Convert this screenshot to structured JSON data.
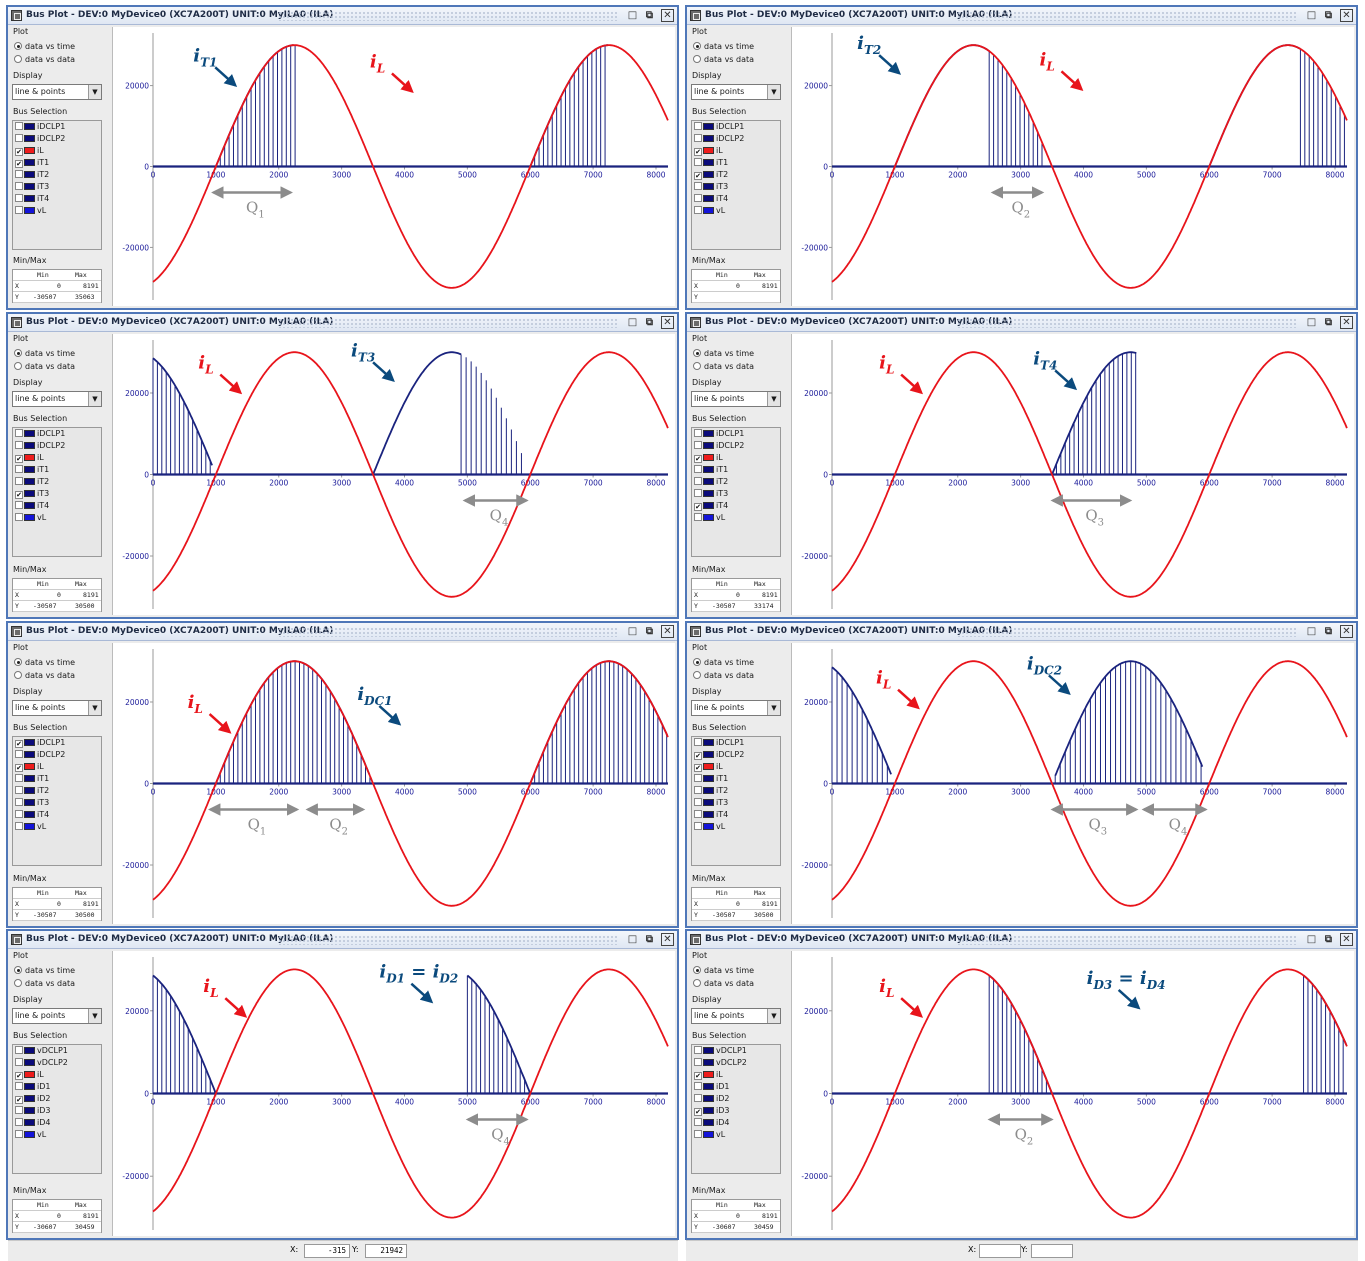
{
  "window_title": "Bus Plot - DEV:0 MyDevice0 (XC7A200T) UNIT:0 MyILA0 (ILA)",
  "sidebar": {
    "plot_label": "Plot",
    "radio_time": "data vs time",
    "radio_data": "data vs data",
    "display_label": "Display",
    "display_value": "line & points",
    "bus_label": "Bus Selection",
    "minmax_label": "Min/Max",
    "col_min": "Min",
    "col_max": "Max",
    "row_x": "X",
    "row_y": "Y"
  },
  "colors": {
    "current_il": "#e8141b",
    "bus_trace": "#1a237e",
    "annot_blue": "#0b4a7d",
    "annot_red": "#e8141b",
    "arrow_gray": "#8c8c8c",
    "swatch_navy": "#0a0a7a",
    "swatch_blue": "#1414d8",
    "swatch_red": "#ee1c1c"
  },
  "panels": [
    {
      "id": "p1",
      "buses": [
        {
          "name": "iDCLP1",
          "checked": false,
          "color": "#0a0a7a"
        },
        {
          "name": "iDCLP2",
          "checked": false,
          "color": "#0a0a7a"
        },
        {
          "name": "iL",
          "checked": true,
          "color": "#ee1c1c"
        },
        {
          "name": "iT1",
          "checked": true,
          "color": "#0a0a7a"
        },
        {
          "name": "iT2",
          "checked": false,
          "color": "#0a0a7a"
        },
        {
          "name": "iT3",
          "checked": false,
          "color": "#0a0a7a"
        },
        {
          "name": "iT4",
          "checked": false,
          "color": "#0a0a7a"
        },
        {
          "name": "vL",
          "checked": false,
          "color": "#1414d8"
        }
      ],
      "minmax": {
        "x_min": "0",
        "x_max": "8191",
        "y_min": "-30507",
        "y_max": "35063"
      },
      "trace": {
        "type": "switch",
        "start": 1000,
        "end": 2250,
        "height": 30000,
        "segment": "rise"
      },
      "annotations": [
        {
          "text": "i",
          "sub": "T1",
          "color": "blue",
          "label_x": 640,
          "label_y": 26000
        },
        {
          "text": "i",
          "sub": "L",
          "color": "red",
          "label_x": 3450,
          "label_y": 24500
        }
      ],
      "q_arrows": [
        {
          "from": 900,
          "to": 2250,
          "label": "Q",
          "sub": "1"
        }
      ]
    },
    {
      "id": "p2",
      "buses": [
        {
          "name": "iDCLP1",
          "checked": false,
          "color": "#0a0a7a"
        },
        {
          "name": "iDCLP2",
          "checked": false,
          "color": "#0a0a7a"
        },
        {
          "name": "iL",
          "checked": true,
          "color": "#ee1c1c"
        },
        {
          "name": "iT1",
          "checked": false,
          "color": "#0a0a7a"
        },
        {
          "name": "iT2",
          "checked": true,
          "color": "#0a0a7a"
        },
        {
          "name": "iT3",
          "checked": false,
          "color": "#0a0a7a"
        },
        {
          "name": "iT4",
          "checked": false,
          "color": "#0a0a7a"
        },
        {
          "name": "vL",
          "checked": false,
          "color": "#1414d8"
        }
      ],
      "minmax": {
        "x_min": "0",
        "x_max": "8191",
        "y_min": "",
        "y_max": ""
      },
      "trace": {
        "type": "switch2",
        "start": 1000,
        "end": 3400,
        "height": 30000,
        "segment": "rise-fall"
      },
      "annotations": [
        {
          "text": "i",
          "sub": "T2",
          "color": "blue",
          "label_x": 400,
          "label_y": 29000
        },
        {
          "text": "i",
          "sub": "L",
          "color": "red",
          "label_x": 3300,
          "label_y": 25000
        }
      ],
      "q_arrows": [
        {
          "from": 2500,
          "to": 3400,
          "label": "Q",
          "sub": "2"
        }
      ]
    },
    {
      "id": "p3",
      "buses": [
        {
          "name": "iDCLP1",
          "checked": false,
          "color": "#0a0a7a"
        },
        {
          "name": "iDCLP2",
          "checked": false,
          "color": "#0a0a7a"
        },
        {
          "name": "iL",
          "checked": true,
          "color": "#ee1c1c"
        },
        {
          "name": "iT1",
          "checked": false,
          "color": "#0a0a7a"
        },
        {
          "name": "iT2",
          "checked": false,
          "color": "#0a0a7a"
        },
        {
          "name": "iT3",
          "checked": true,
          "color": "#0a0a7a"
        },
        {
          "name": "iT4",
          "checked": false,
          "color": "#0a0a7a"
        },
        {
          "name": "vL",
          "checked": false,
          "color": "#1414d8"
        }
      ],
      "minmax": {
        "x_min": "0",
        "x_max": "8191",
        "y_min": "-30507",
        "y_max": "30500"
      },
      "trace": {
        "type": "t3"
      },
      "annotations": [
        {
          "text": "i",
          "sub": "L",
          "color": "red",
          "label_x": 720,
          "label_y": 26000
        },
        {
          "text": "i",
          "sub": "T3",
          "color": "blue",
          "label_x": 3150,
          "label_y": 29000
        }
      ],
      "q_arrows": [
        {
          "from": 4900,
          "to": 6000,
          "label": "Q",
          "sub": "4"
        }
      ]
    },
    {
      "id": "p4",
      "buses": [
        {
          "name": "iDCLP1",
          "checked": false,
          "color": "#0a0a7a"
        },
        {
          "name": "iDCLP2",
          "checked": false,
          "color": "#0a0a7a"
        },
        {
          "name": "iL",
          "checked": true,
          "color": "#ee1c1c"
        },
        {
          "name": "iT1",
          "checked": false,
          "color": "#0a0a7a"
        },
        {
          "name": "iT2",
          "checked": false,
          "color": "#0a0a7a"
        },
        {
          "name": "iT3",
          "checked": false,
          "color": "#0a0a7a"
        },
        {
          "name": "iT4",
          "checked": true,
          "color": "#0a0a7a"
        },
        {
          "name": "vL",
          "checked": false,
          "color": "#1414d8"
        }
      ],
      "minmax": {
        "x_min": "0",
        "x_max": "8191",
        "y_min": "-30507",
        "y_max": "33174"
      },
      "trace": {
        "type": "t4"
      },
      "annotations": [
        {
          "text": "i",
          "sub": "L",
          "color": "red",
          "label_x": 750,
          "label_y": 26000
        },
        {
          "text": "i",
          "sub": "T4",
          "color": "blue",
          "label_x": 3200,
          "label_y": 27000
        }
      ],
      "q_arrows": [
        {
          "from": 3450,
          "to": 4800,
          "label": "Q",
          "sub": "3"
        }
      ]
    },
    {
      "id": "p5",
      "buses": [
        {
          "name": "iDCLP1",
          "checked": true,
          "color": "#0a0a7a"
        },
        {
          "name": "iDCLP2",
          "checked": false,
          "color": "#0a0a7a"
        },
        {
          "name": "iL",
          "checked": true,
          "color": "#ee1c1c"
        },
        {
          "name": "iT1",
          "checked": false,
          "color": "#0a0a7a"
        },
        {
          "name": "iT2",
          "checked": false,
          "color": "#0a0a7a"
        },
        {
          "name": "iT3",
          "checked": false,
          "color": "#0a0a7a"
        },
        {
          "name": "iT4",
          "checked": false,
          "color": "#0a0a7a"
        },
        {
          "name": "vL",
          "checked": false,
          "color": "#1414d8"
        }
      ],
      "minmax": {
        "x_min": "0",
        "x_max": "8191",
        "y_min": "-30507",
        "y_max": "30500"
      },
      "trace": {
        "type": "dc1"
      },
      "annotations": [
        {
          "text": "i",
          "sub": "L",
          "color": "red",
          "label_x": 550,
          "label_y": 18500
        },
        {
          "text": "i",
          "sub": "DC1",
          "color": "blue",
          "label_x": 3250,
          "label_y": 20500
        }
      ],
      "q_arrows": [
        {
          "from": 850,
          "to": 2350,
          "label": "Q",
          "sub": "1"
        },
        {
          "from": 2400,
          "to": 3400,
          "label": "Q",
          "sub": "2"
        }
      ]
    },
    {
      "id": "p6",
      "buses": [
        {
          "name": "iDCLP1",
          "checked": false,
          "color": "#0a0a7a"
        },
        {
          "name": "iDCLP2",
          "checked": true,
          "color": "#0a0a7a"
        },
        {
          "name": "iL",
          "checked": true,
          "color": "#ee1c1c"
        },
        {
          "name": "iT1",
          "checked": false,
          "color": "#0a0a7a"
        },
        {
          "name": "iT2",
          "checked": false,
          "color": "#0a0a7a"
        },
        {
          "name": "iT3",
          "checked": false,
          "color": "#0a0a7a"
        },
        {
          "name": "iT4",
          "checked": false,
          "color": "#0a0a7a"
        },
        {
          "name": "vL",
          "checked": false,
          "color": "#1414d8"
        }
      ],
      "minmax": {
        "x_min": "0",
        "x_max": "8191",
        "y_min": "-30507",
        "y_max": "30500"
      },
      "trace": {
        "type": "dc2"
      },
      "annotations": [
        {
          "text": "i",
          "sub": "L",
          "color": "red",
          "label_x": 700,
          "label_y": 24500
        },
        {
          "text": "i",
          "sub": "DC2",
          "color": "blue",
          "label_x": 3100,
          "label_y": 28000
        }
      ],
      "q_arrows": [
        {
          "from": 3450,
          "to": 4900,
          "label": "Q",
          "sub": "3"
        },
        {
          "from": 4900,
          "to": 6000,
          "label": "Q",
          "sub": "4"
        }
      ]
    },
    {
      "id": "p7",
      "buses": [
        {
          "name": "vDCLP1",
          "checked": false,
          "color": "#0a0a7a"
        },
        {
          "name": "vDCLP2",
          "checked": false,
          "color": "#0a0a7a"
        },
        {
          "name": "iL",
          "checked": true,
          "color": "#ee1c1c"
        },
        {
          "name": "iD1",
          "checked": false,
          "color": "#0a0a7a"
        },
        {
          "name": "iD2",
          "checked": true,
          "color": "#0a0a7a"
        },
        {
          "name": "iD3",
          "checked": false,
          "color": "#0a0a7a"
        },
        {
          "name": "iD4",
          "checked": false,
          "color": "#0a0a7a"
        },
        {
          "name": "vL",
          "checked": false,
          "color": "#1414d8"
        }
      ],
      "minmax": {
        "x_min": "0",
        "x_max": "8191",
        "y_min": "-30607",
        "y_max": "30459"
      },
      "trace": {
        "type": "d12"
      },
      "annotations": [
        {
          "text": "i",
          "sub": "L",
          "color": "red",
          "label_x": 800,
          "label_y": 24500
        },
        {
          "text": "i",
          "sub": "D1",
          "color": "blue",
          "label_x": 3600,
          "label_y": 28000,
          "extra": " = ",
          "text2": "i",
          "sub2": "D2"
        }
      ],
      "q_arrows": [
        {
          "from": 4950,
          "to": 6000,
          "label": "Q",
          "sub": "4"
        }
      ]
    },
    {
      "id": "p8",
      "buses": [
        {
          "name": "vDCLP1",
          "checked": false,
          "color": "#0a0a7a"
        },
        {
          "name": "vDCLP2",
          "checked": false,
          "color": "#0a0a7a"
        },
        {
          "name": "iL",
          "checked": true,
          "color": "#ee1c1c"
        },
        {
          "name": "iD1",
          "checked": false,
          "color": "#0a0a7a"
        },
        {
          "name": "iD2",
          "checked": false,
          "color": "#0a0a7a"
        },
        {
          "name": "iD3",
          "checked": true,
          "color": "#0a0a7a"
        },
        {
          "name": "iD4",
          "checked": false,
          "color": "#0a0a7a"
        },
        {
          "name": "vL",
          "checked": false,
          "color": "#1414d8"
        }
      ],
      "minmax": {
        "x_min": "0",
        "x_max": "8191",
        "y_min": "-30607",
        "y_max": "30459"
      },
      "trace": {
        "type": "d34"
      },
      "annotations": [
        {
          "text": "i",
          "sub": "L",
          "color": "red",
          "label_x": 750,
          "label_y": 24500
        },
        {
          "text": "i",
          "sub": "D3",
          "color": "blue",
          "label_x": 4050,
          "label_y": 26500,
          "extra": " = ",
          "text2": "i",
          "sub2": "D4"
        }
      ],
      "q_arrows": [
        {
          "from": 2450,
          "to": 3550,
          "label": "Q",
          "sub": "2"
        }
      ]
    }
  ],
  "axes": {
    "x_ticks": [
      "0",
      "1000",
      "2000",
      "3000",
      "4000",
      "5000",
      "6000",
      "7000",
      "8000"
    ],
    "y_ticks": [
      "20000",
      "0",
      "-20000"
    ],
    "x_max": 8191,
    "y_range": [
      -33000,
      33000
    ]
  },
  "chart_data": {
    "type": "line",
    "series": [
      {
        "name": "iL",
        "description_values": "sinusoid, amplitude ~30000, period ~5000 samples, rising zero crossing near x=1000 and x=6000"
      }
    ]
  },
  "status": {
    "left": {
      "x_label": "X:",
      "x_value": "-315",
      "y_label": "Y:",
      "y_value": "21942"
    },
    "right": {
      "x_label": "X:",
      "x_value": "",
      "y_label": "Y:",
      "y_value": ""
    }
  }
}
